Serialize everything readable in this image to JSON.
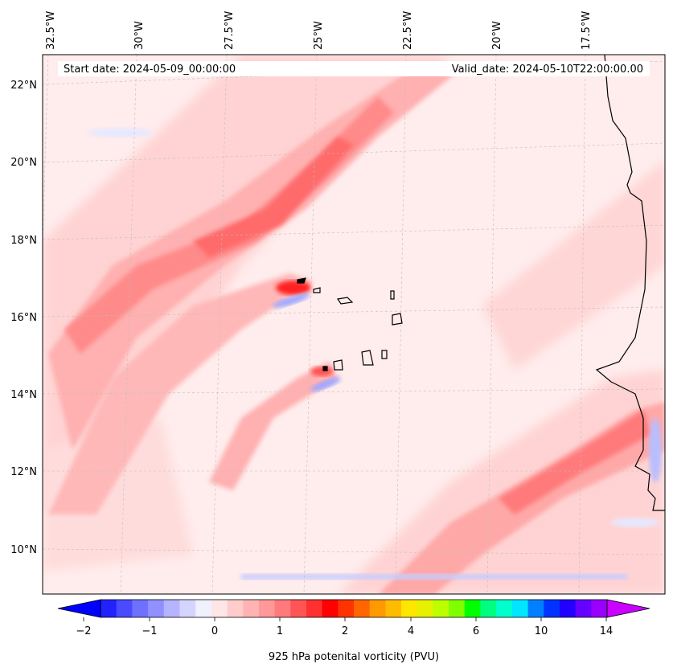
{
  "header": {
    "start_date": "Start date: 2024-05-09_00:00:00",
    "valid_date": "Valid_date: 2024-05-10T22:00:00.00"
  },
  "axes": {
    "lon_labels": [
      "32.5°W",
      "30°W",
      "27.5°W",
      "25°W",
      "22.5°W",
      "20°W",
      "17.5°W"
    ],
    "lat_labels": [
      "22°N",
      "20°N",
      "18°N",
      "16°N",
      "14°N",
      "12°N",
      "10°N"
    ]
  },
  "colorbar": {
    "label": "925 hPa potenital vorticity (PVU)",
    "tick_labels": [
      "−2",
      "−1",
      "0",
      "1",
      "2",
      "4",
      "6",
      "10",
      "14"
    ],
    "colors": [
      "#0000ff",
      "#2222ff",
      "#4a4aff",
      "#7070ff",
      "#9090ff",
      "#b4b4ff",
      "#d4d4ff",
      "#f0f0ff",
      "#ffe6e6",
      "#ffcccc",
      "#ffb3b3",
      "#ff9999",
      "#ff7a7a",
      "#ff5555",
      "#ff3030",
      "#ff0000",
      "#ff3300",
      "#ff6600",
      "#ff9900",
      "#ffbb00",
      "#ffe600",
      "#e6f000",
      "#bbff00",
      "#80ff00",
      "#00ff00",
      "#00ff80",
      "#00ffcc",
      "#00e6ff",
      "#0080ff",
      "#0033ff",
      "#2200ff",
      "#6600ff",
      "#9900ff",
      "#cc00ff"
    ]
  },
  "colors": {
    "bg_light": "#ffecec",
    "band_light": "#ffd3d3",
    "band_mid": "#ffb0b0",
    "band_strong": "#ff8080",
    "band_core": "#ff4040",
    "neg_light": "#e6e8ff",
    "neg_mid": "#9ea6ff",
    "coast": "#000000"
  }
}
